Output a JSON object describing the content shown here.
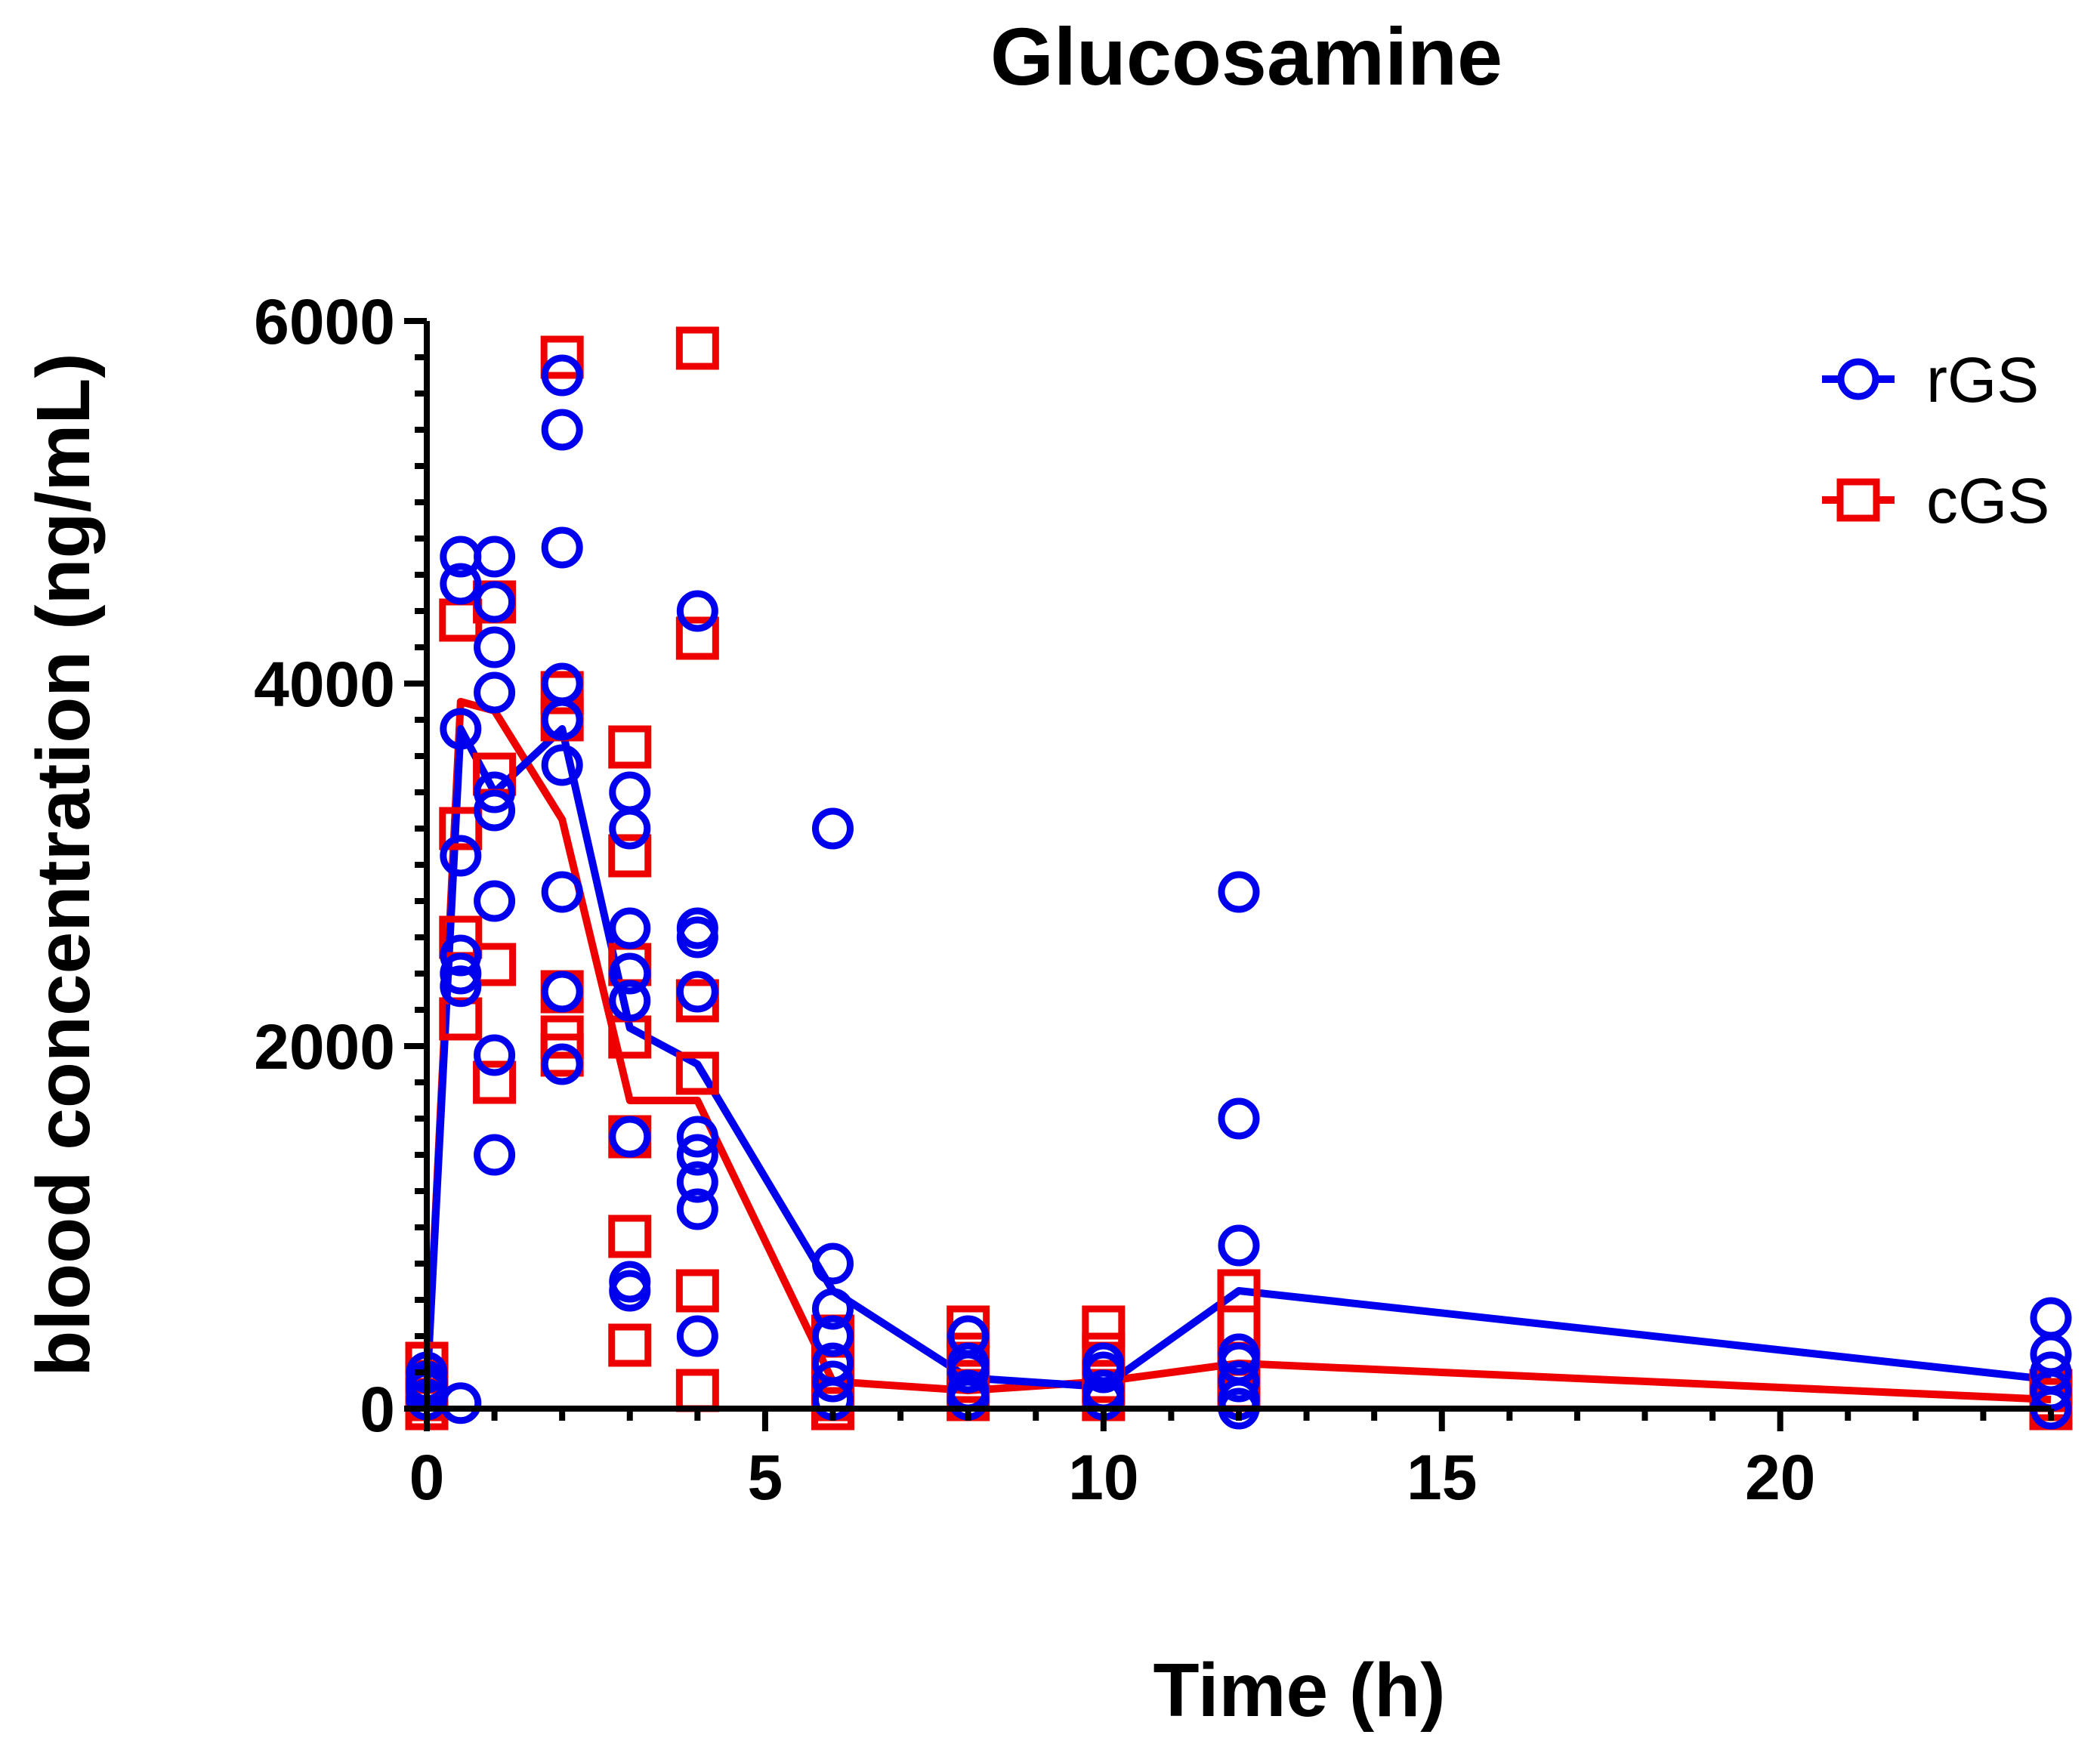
{
  "chart_data": {
    "type": "scatter",
    "title": "Glucosamine",
    "xlabel": "Time (h)",
    "ylabel": "blood concentration (ng/mL)",
    "xlim": [
      0,
      24
    ],
    "ylim": [
      0,
      6000
    ],
    "xticks": [
      0,
      5,
      10,
      15,
      20
    ],
    "xtick_labels": [
      "0",
      "5",
      "10",
      "15",
      "20"
    ],
    "yticks": [
      0,
      2000,
      4000,
      6000
    ],
    "ytick_labels": [
      "0",
      "2000",
      "4000",
      "6000"
    ],
    "legend_position": "top-right",
    "series": [
      {
        "name": "rGS",
        "marker": "circle",
        "color": "#0000ee",
        "mean_line": [
          [
            0,
            100
          ],
          [
            0.5,
            3750
          ],
          [
            1,
            3400
          ],
          [
            2,
            3750
          ],
          [
            3,
            2100
          ],
          [
            4,
            1900
          ],
          [
            6,
            650
          ],
          [
            8,
            170
          ],
          [
            10,
            120
          ],
          [
            12,
            650
          ],
          [
            24,
            160
          ]
        ],
        "points": [
          [
            0,
            100
          ],
          [
            0,
            150
          ],
          [
            0,
            200
          ],
          [
            0,
            50
          ],
          [
            0,
            120
          ],
          [
            0.5,
            30
          ],
          [
            0.5,
            4700
          ],
          [
            0.5,
            4550
          ],
          [
            0.5,
            3750
          ],
          [
            0.5,
            3050
          ],
          [
            0.5,
            2500
          ],
          [
            0.5,
            2400
          ],
          [
            0.5,
            2330
          ],
          [
            1,
            4700
          ],
          [
            1,
            4450
          ],
          [
            1,
            4200
          ],
          [
            1,
            3950
          ],
          [
            1,
            3400
          ],
          [
            1,
            3300
          ],
          [
            1,
            2800
          ],
          [
            1,
            1950
          ],
          [
            1,
            1400
          ],
          [
            2,
            5700
          ],
          [
            2,
            5400
          ],
          [
            2,
            4750
          ],
          [
            2,
            4000
          ],
          [
            2,
            3800
          ],
          [
            2,
            3550
          ],
          [
            2,
            2850
          ],
          [
            2,
            2300
          ],
          [
            2,
            1900
          ],
          [
            3,
            3400
          ],
          [
            3,
            3200
          ],
          [
            3,
            2650
          ],
          [
            3,
            2400
          ],
          [
            3,
            2250
          ],
          [
            3,
            1500
          ],
          [
            3,
            700
          ],
          [
            3,
            650
          ],
          [
            4,
            4400
          ],
          [
            4,
            2650
          ],
          [
            4,
            2600
          ],
          [
            4,
            2300
          ],
          [
            4,
            1500
          ],
          [
            4,
            1400
          ],
          [
            4,
            1250
          ],
          [
            4,
            1100
          ],
          [
            4,
            400
          ],
          [
            6,
            3200
          ],
          [
            6,
            800
          ],
          [
            6,
            550
          ],
          [
            6,
            400
          ],
          [
            6,
            250
          ],
          [
            6,
            150
          ],
          [
            6,
            50
          ],
          [
            8,
            400
          ],
          [
            8,
            250
          ],
          [
            8,
            200
          ],
          [
            8,
            100
          ],
          [
            8,
            50
          ],
          [
            10,
            250
          ],
          [
            10,
            200
          ],
          [
            10,
            100
          ],
          [
            10,
            50
          ],
          [
            12,
            2850
          ],
          [
            12,
            1600
          ],
          [
            12,
            900
          ],
          [
            12,
            300
          ],
          [
            12,
            250
          ],
          [
            12,
            150
          ],
          [
            12,
            50
          ],
          [
            12,
            0
          ],
          [
            24,
            500
          ],
          [
            24,
            300
          ],
          [
            24,
            200
          ],
          [
            24,
            100
          ],
          [
            24,
            0
          ]
        ]
      },
      {
        "name": "cGS",
        "marker": "square",
        "color": "#ee0000",
        "mean_line": [
          [
            0,
            100
          ],
          [
            0.5,
            3900
          ],
          [
            1,
            3850
          ],
          [
            2,
            3250
          ],
          [
            3,
            1700
          ],
          [
            4,
            1700
          ],
          [
            6,
            150
          ],
          [
            8,
            100
          ],
          [
            10,
            150
          ],
          [
            12,
            250
          ],
          [
            24,
            50
          ]
        ],
        "points": [
          [
            0,
            250
          ],
          [
            0,
            150
          ],
          [
            0,
            50
          ],
          [
            0,
            0
          ],
          [
            0.5,
            4350
          ],
          [
            0.5,
            3200
          ],
          [
            0.5,
            2600
          ],
          [
            0.5,
            2150
          ],
          [
            1,
            4450
          ],
          [
            1,
            3500
          ],
          [
            1,
            2450
          ],
          [
            1,
            1800
          ],
          [
            2,
            5800
          ],
          [
            2,
            3950
          ],
          [
            2,
            3800
          ],
          [
            2,
            2300
          ],
          [
            2,
            2050
          ],
          [
            2,
            1950
          ],
          [
            3,
            3650
          ],
          [
            3,
            3050
          ],
          [
            3,
            2450
          ],
          [
            3,
            2050
          ],
          [
            3,
            1500
          ],
          [
            3,
            950
          ],
          [
            3,
            350
          ],
          [
            4,
            5850
          ],
          [
            4,
            4250
          ],
          [
            4,
            2250
          ],
          [
            4,
            1850
          ],
          [
            4,
            650
          ],
          [
            4,
            100
          ],
          [
            6,
            400
          ],
          [
            6,
            200
          ],
          [
            6,
            50
          ],
          [
            6,
            0
          ],
          [
            8,
            450
          ],
          [
            8,
            300
          ],
          [
            8,
            150
          ],
          [
            8,
            50
          ],
          [
            10,
            450
          ],
          [
            10,
            300
          ],
          [
            10,
            150
          ],
          [
            10,
            50
          ],
          [
            12,
            650
          ],
          [
            12,
            450
          ],
          [
            12,
            250
          ],
          [
            12,
            100
          ],
          [
            24,
            100
          ],
          [
            24,
            50
          ],
          [
            24,
            0
          ]
        ]
      }
    ]
  }
}
